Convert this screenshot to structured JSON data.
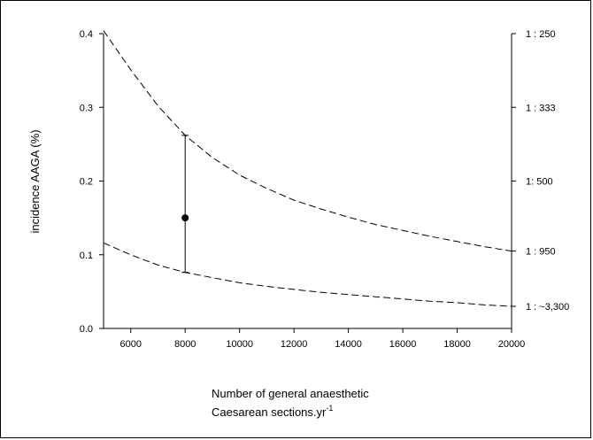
{
  "chart_data": {
    "type": "line",
    "ylabel": "incidence AAGA (%)",
    "xlabel_line1": "Number of general anaesthetic",
    "xlabel_line2_base": "Caesarean sections.yr",
    "xlabel_line2_sup": "-1",
    "xlim": [
      5000,
      20000
    ],
    "ylim": [
      0,
      0.4
    ],
    "x_ticks": [
      6000,
      8000,
      10000,
      12000,
      14000,
      16000,
      18000,
      20000
    ],
    "y_ticks": [
      0.0,
      0.1,
      0.2,
      0.3,
      0.4
    ],
    "x_tick_labels": [
      "6000",
      "8000",
      "10000",
      "12000",
      "14000",
      "16000",
      "18000",
      "20000"
    ],
    "y_tick_labels": [
      "0.0",
      "0.1",
      "0.2",
      "0.3",
      "0.4"
    ],
    "right_axis_labels": [
      {
        "text": "1 : 250",
        "y": 0.4
      },
      {
        "text": "1 : 333",
        "y": 0.3
      },
      {
        "text": "1: 500",
        "y": 0.2
      },
      {
        "text": "1 : 950",
        "y": 0.105
      },
      {
        "text": "1 : ~3,300",
        "y": 0.03
      }
    ],
    "series": [
      {
        "style": "dashed",
        "x": [
          5000,
          6000,
          7000,
          8000,
          9000,
          10000,
          11000,
          12000,
          13000,
          14000,
          15000,
          16000,
          17000,
          18000,
          19000,
          20000
        ],
        "values": [
          0.404,
          0.351,
          0.302,
          0.262,
          0.232,
          0.208,
          0.19,
          0.174,
          0.162,
          0.151,
          0.141,
          0.133,
          0.125,
          0.118,
          0.111,
          0.105
        ]
      },
      {
        "style": "dashed",
        "x": [
          5000,
          6000,
          7000,
          8000,
          9000,
          10000,
          11000,
          12000,
          13000,
          14000,
          15000,
          16000,
          17000,
          18000,
          19000,
          20000
        ],
        "values": [
          0.116,
          0.1,
          0.086,
          0.076,
          0.069,
          0.062,
          0.057,
          0.053,
          0.049,
          0.046,
          0.043,
          0.04,
          0.037,
          0.035,
          0.032,
          0.03
        ]
      }
    ],
    "error_point": {
      "x": 8000,
      "y": 0.15,
      "low": 0.076,
      "high": 0.262
    },
    "grid": false,
    "legend": "none"
  }
}
